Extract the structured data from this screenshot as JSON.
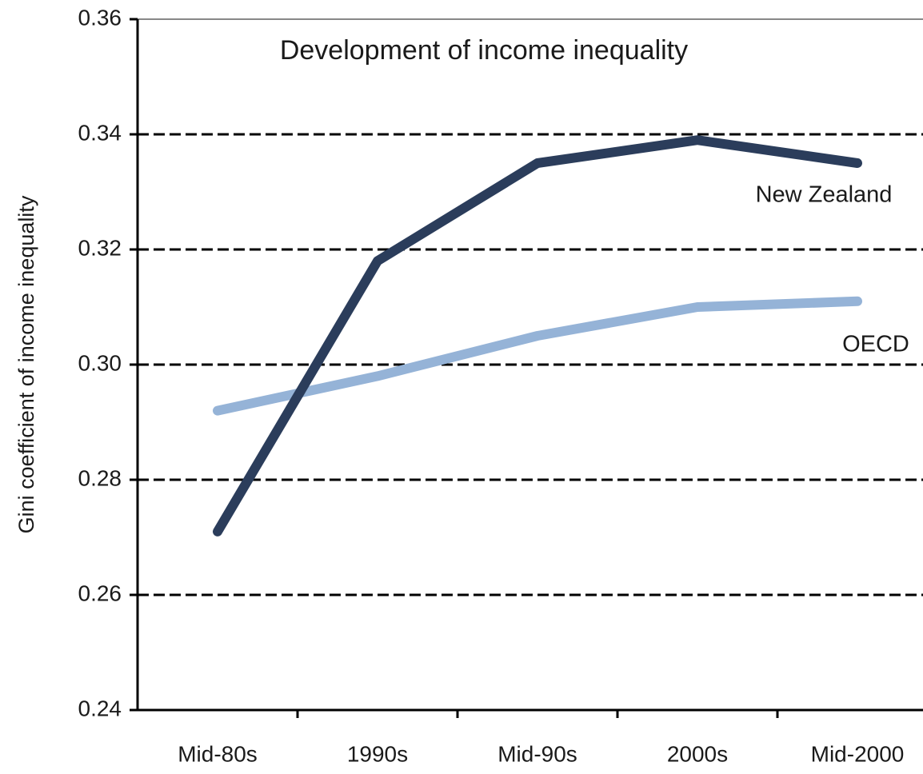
{
  "chart_data": {
    "type": "line",
    "title": "Development of income inequality",
    "y_label": "Gini coefficient of income inequality",
    "categories": [
      "Mid-80s",
      "1990s",
      "Mid-90s",
      "2000s",
      "Mid-2000"
    ],
    "series": [
      {
        "name": "New Zealand",
        "color": "#2b3d5b",
        "values": [
          0.271,
          0.318,
          0.335,
          0.339,
          0.335
        ]
      },
      {
        "name": "OECD",
        "color": "#95b3d7",
        "values": [
          0.292,
          0.298,
          0.305,
          0.31,
          0.311
        ]
      }
    ],
    "ylim": [
      0.24,
      0.36
    ],
    "yticks": [
      {
        "value": 0.24,
        "label": "0.24"
      },
      {
        "value": 0.26,
        "label": "0.26"
      },
      {
        "value": 0.28,
        "label": "0.28"
      },
      {
        "value": 0.3,
        "label": "0.30"
      },
      {
        "value": 0.32,
        "label": "0.32"
      },
      {
        "value": 0.34,
        "label": "0.34"
      },
      {
        "value": 0.36,
        "label": "0.36"
      }
    ],
    "grid": true
  }
}
